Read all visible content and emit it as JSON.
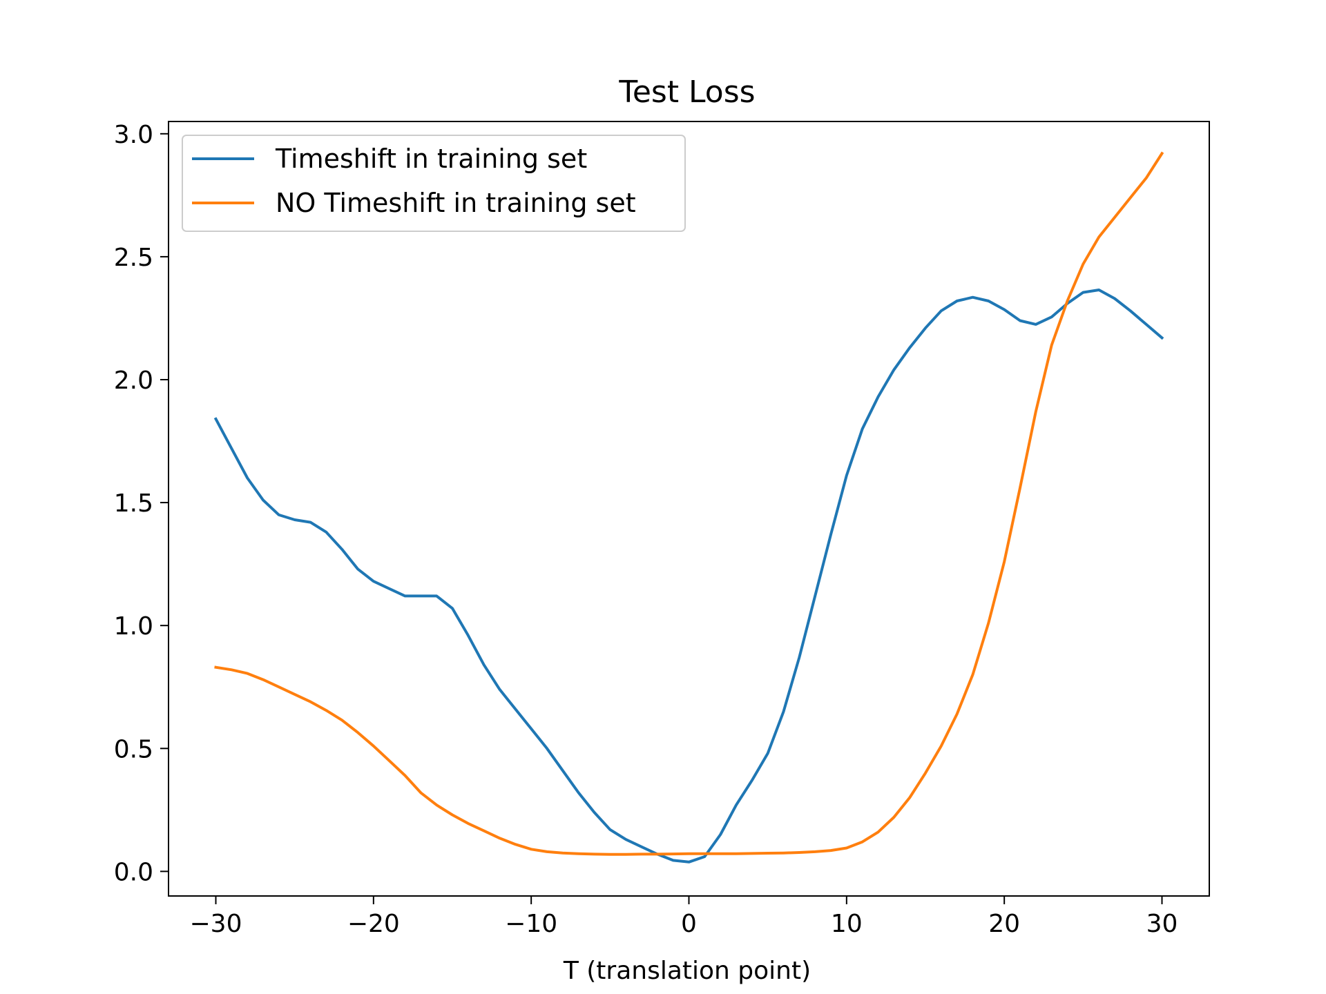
{
  "chart_data": {
    "type": "line",
    "title": "Test Loss",
    "xlabel": "T (translation point)",
    "ylabel": "",
    "xlim": [
      -33,
      33
    ],
    "ylim": [
      -0.1,
      3.05
    ],
    "xticks": [
      -30,
      -20,
      -10,
      0,
      10,
      20,
      30
    ],
    "xtick_labels": [
      "−30",
      "−20",
      "−10",
      "0",
      "10",
      "20",
      "30"
    ],
    "yticks": [
      0.0,
      0.5,
      1.0,
      1.5,
      2.0,
      2.5,
      3.0
    ],
    "ytick_labels": [
      "0.0",
      "0.5",
      "1.0",
      "1.5",
      "2.0",
      "2.5",
      "3.0"
    ],
    "grid": false,
    "legend_position": "upper-left",
    "x": [
      -30,
      -29,
      -28,
      -27,
      -26,
      -25,
      -24,
      -23,
      -22,
      -21,
      -20,
      -19,
      -18,
      -17,
      -16,
      -15,
      -14,
      -13,
      -12,
      -11,
      -10,
      -9,
      -8,
      -7,
      -6,
      -5,
      -4,
      -3,
      -2,
      -1,
      0,
      1,
      2,
      3,
      4,
      5,
      6,
      7,
      8,
      9,
      10,
      11,
      12,
      13,
      14,
      15,
      16,
      17,
      18,
      19,
      20,
      21,
      22,
      23,
      24,
      25,
      26,
      27,
      28,
      29,
      30
    ],
    "series": [
      {
        "name": "Timeshift in training set",
        "color": "#1f77b4",
        "values": [
          1.84,
          1.72,
          1.6,
          1.51,
          1.45,
          1.43,
          1.42,
          1.38,
          1.31,
          1.23,
          1.18,
          1.15,
          1.12,
          1.12,
          1.12,
          1.07,
          0.96,
          0.84,
          0.74,
          0.66,
          0.58,
          0.5,
          0.41,
          0.32,
          0.24,
          0.17,
          0.13,
          0.1,
          0.07,
          0.045,
          0.038,
          0.06,
          0.15,
          0.27,
          0.37,
          0.48,
          0.65,
          0.87,
          1.12,
          1.37,
          1.61,
          1.8,
          1.93,
          2.04,
          2.13,
          2.21,
          2.28,
          2.32,
          2.335,
          2.32,
          2.285,
          2.24,
          2.225,
          2.255,
          2.31,
          2.355,
          2.365,
          2.33,
          2.28,
          2.225,
          2.17
        ]
      },
      {
        "name": "NO Timeshift in training set",
        "color": "#ff7f0e",
        "values": [
          0.83,
          0.82,
          0.805,
          0.78,
          0.75,
          0.72,
          0.69,
          0.655,
          0.615,
          0.565,
          0.51,
          0.45,
          0.39,
          0.32,
          0.27,
          0.23,
          0.195,
          0.165,
          0.135,
          0.11,
          0.09,
          0.08,
          0.075,
          0.072,
          0.07,
          0.069,
          0.069,
          0.07,
          0.07,
          0.071,
          0.072,
          0.072,
          0.072,
          0.072,
          0.073,
          0.074,
          0.075,
          0.077,
          0.08,
          0.085,
          0.095,
          0.12,
          0.16,
          0.22,
          0.3,
          0.4,
          0.51,
          0.64,
          0.8,
          1.01,
          1.26,
          1.56,
          1.87,
          2.14,
          2.32,
          2.47,
          2.58,
          2.66,
          2.74,
          2.82,
          2.92
        ]
      }
    ]
  }
}
